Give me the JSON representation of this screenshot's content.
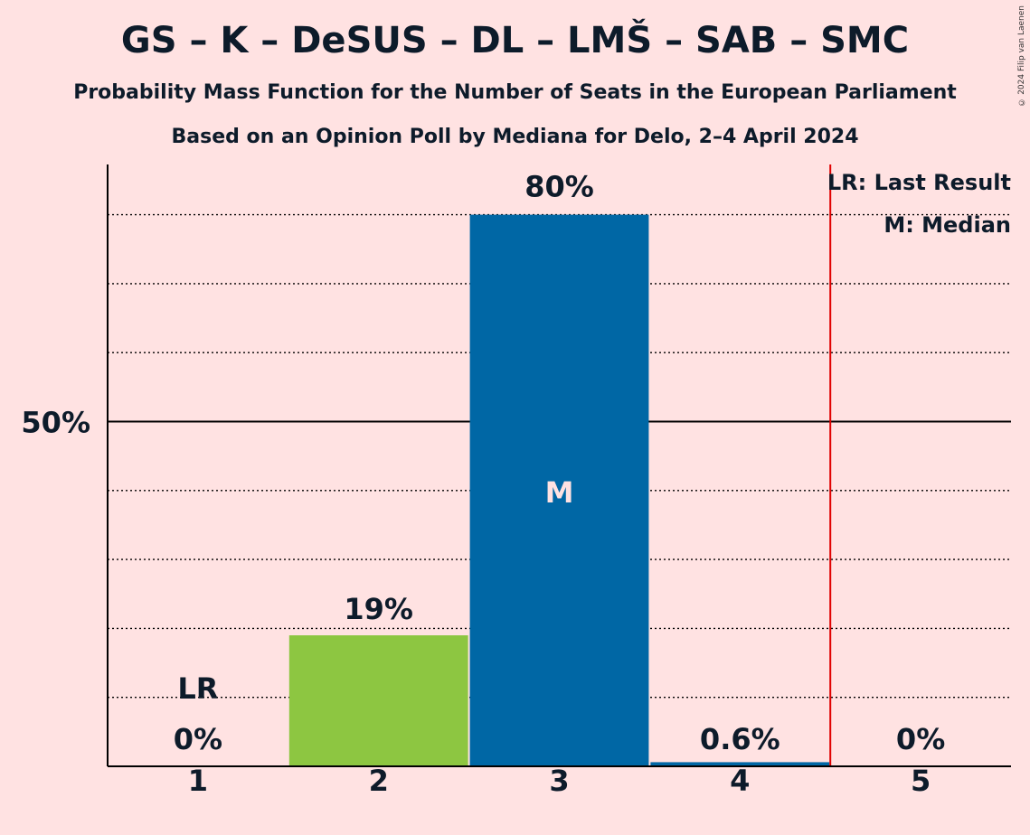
{
  "title": "GS – K – DeSUS – DL – LMŠ – SAB – SMC",
  "subtitle": "Probability Mass Function for the Number of Seats in the European Parliament",
  "subtitle2": "Based on an Opinion Poll by Mediana for Delo, 2–4 April 2024",
  "copyright": "© 2024 Filip van Laenen",
  "legend": {
    "last_result": "LR: Last Result",
    "median": "M: Median"
  },
  "chart_data": {
    "type": "bar",
    "categories": [
      "1",
      "2",
      "3",
      "4",
      "5"
    ],
    "values": [
      0,
      19,
      80,
      0.6,
      0
    ],
    "value_labels": [
      "0%",
      "19%",
      "80%",
      "0.6%",
      "0%"
    ],
    "bar_colors": [
      "#8DC641",
      "#8DC641",
      "#0067A5",
      "#0067A5",
      "#0067A5"
    ],
    "ylim": [
      0,
      100
    ],
    "y_ticks": [
      {
        "value": 50,
        "label": "50%"
      }
    ],
    "minor_gridlines": [
      10,
      20,
      30,
      40,
      60,
      70,
      80
    ],
    "last_result_seat": "1",
    "last_result_label": "LR",
    "median_seat": "3",
    "median_label": "M",
    "threshold_after_seat": "4",
    "threshold_color": "#E00000"
  }
}
